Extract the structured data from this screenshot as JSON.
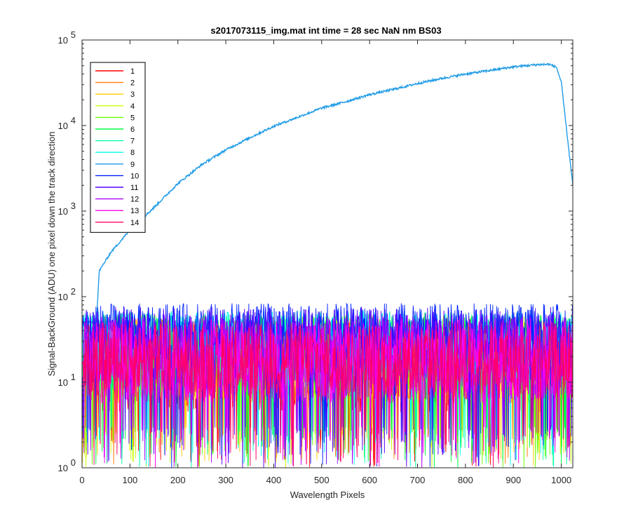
{
  "chart_data": {
    "type": "line",
    "title": "s2017073115_img.mat int time = 28 sec  NaN nm BS03",
    "xlabel": "Wavelength Pixels",
    "ylabel": "Signal-BackGround (ADU) one pixel down the track direction",
    "xlim": [
      0,
      1024
    ],
    "ylim": [
      1,
      100000
    ],
    "yscale": "log",
    "grid": false,
    "legend_position": "top-left",
    "xticks": [
      0,
      100,
      200,
      300,
      400,
      500,
      600,
      700,
      800,
      900,
      1000
    ],
    "xtick_labels": [
      "0",
      "100",
      "200",
      "300",
      "400",
      "500",
      "600",
      "700",
      "800",
      "900",
      "1000"
    ],
    "yticks": [
      1,
      10,
      100,
      1000,
      10000,
      100000
    ],
    "ytick_labels": [
      {
        "base": "10",
        "exp": "0"
      },
      {
        "base": "10",
        "exp": "1"
      },
      {
        "base": "10",
        "exp": "2"
      },
      {
        "base": "10",
        "exp": "3"
      },
      {
        "base": "10",
        "exp": "4"
      },
      {
        "base": "10",
        "exp": "5"
      }
    ],
    "series": [
      {
        "name": "1",
        "color": "#ff0000",
        "level": 18,
        "spread": 0.55
      },
      {
        "name": "2",
        "color": "#ff7f00",
        "level": 20,
        "spread": 0.5
      },
      {
        "name": "3",
        "color": "#ffcc00",
        "level": 20,
        "spread": 0.5
      },
      {
        "name": "4",
        "color": "#c8ff00",
        "level": 22,
        "spread": 0.5
      },
      {
        "name": "5",
        "color": "#66ff00",
        "level": 24,
        "spread": 0.45
      },
      {
        "name": "6",
        "color": "#00ff40",
        "level": 26,
        "spread": 0.45
      },
      {
        "name": "7",
        "color": "#00ffaa",
        "level": 28,
        "spread": 0.4
      },
      {
        "name": "8",
        "color": "#00ffee",
        "level": 30,
        "spread": 0.4
      },
      {
        "name": "9",
        "color": "#1e9be6",
        "profile": [
          [
            30,
            50
          ],
          [
            36,
            200
          ],
          [
            60,
            330
          ],
          [
            100,
            600
          ],
          [
            150,
            1100
          ],
          [
            200,
            2100
          ],
          [
            250,
            3500
          ],
          [
            300,
            5200
          ],
          [
            350,
            7200
          ],
          [
            400,
            9800
          ],
          [
            450,
            12500
          ],
          [
            500,
            16000
          ],
          [
            550,
            19000
          ],
          [
            600,
            23000
          ],
          [
            650,
            26500
          ],
          [
            700,
            31000
          ],
          [
            750,
            35500
          ],
          [
            800,
            40000
          ],
          [
            850,
            44000
          ],
          [
            900,
            48500
          ],
          [
            950,
            51500
          ],
          [
            975,
            52000
          ],
          [
            990,
            48000
          ],
          [
            1000,
            32000
          ],
          [
            1010,
            10000
          ],
          [
            1024,
            2000
          ]
        ]
      },
      {
        "name": "10",
        "color": "#0022ff",
        "level": 45,
        "spread": 0.3
      },
      {
        "name": "11",
        "color": "#5500ff",
        "level": 30,
        "spread": 0.45
      },
      {
        "name": "12",
        "color": "#aa00ff",
        "level": 22,
        "spread": 0.5
      },
      {
        "name": "13",
        "color": "#ff00ee",
        "level": 20,
        "spread": 0.5
      },
      {
        "name": "14",
        "color": "#ff0066",
        "level": 20,
        "spread": 0.45
      }
    ]
  }
}
